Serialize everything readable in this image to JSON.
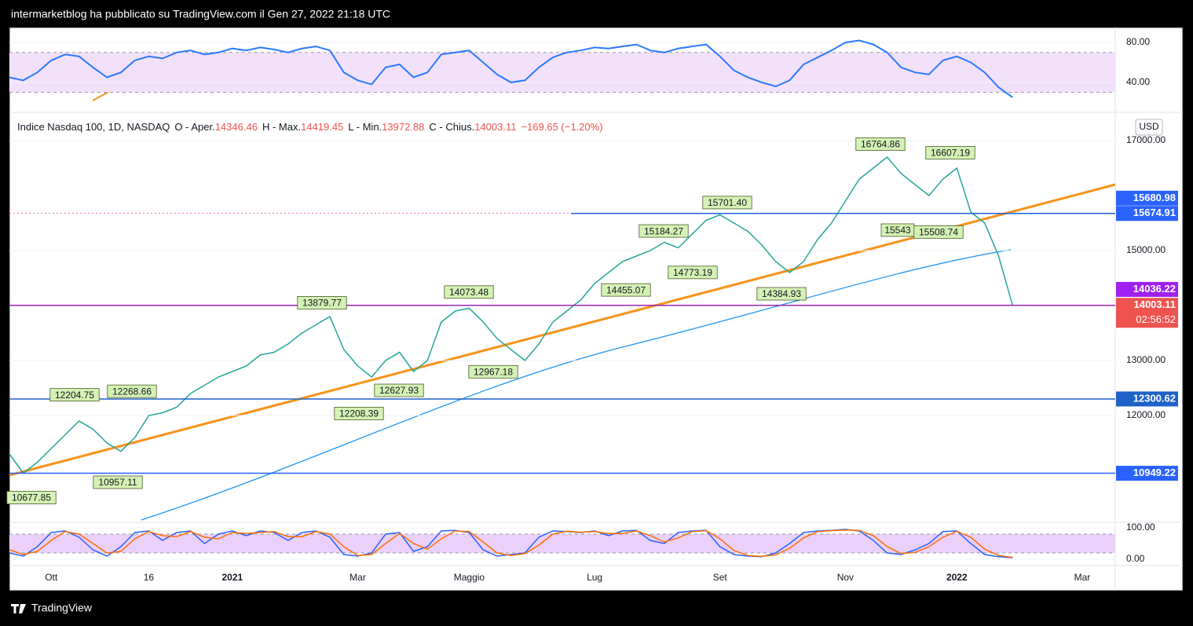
{
  "header": {
    "title": "intermarketblog ha pubblicato su TradingView.com il Gen 27, 2022 21:18 UTC"
  },
  "footer": {
    "brand": "TradingView"
  },
  "chart_data": [
    {
      "type": "line",
      "name": "rsi",
      "series": [
        {
          "color": "#2979ff",
          "values": [
            45,
            42,
            50,
            62,
            68,
            66,
            55,
            45,
            50,
            62,
            66,
            64,
            70,
            72,
            68,
            70,
            74,
            72,
            75,
            73,
            70,
            74,
            76,
            72,
            50,
            42,
            38,
            55,
            58,
            45,
            50,
            68,
            70,
            72,
            60,
            48,
            40,
            42,
            55,
            65,
            70,
            72,
            75,
            74,
            76,
            78,
            72,
            70,
            74,
            76,
            78,
            66,
            52,
            45,
            40,
            36,
            42,
            58,
            65,
            72,
            80,
            82,
            78,
            70,
            55,
            50,
            48,
            62,
            66,
            60,
            50,
            35,
            25,
            null,
            null,
            null,
            null,
            null,
            null
          ]
        }
      ],
      "ylim": [
        10,
        95
      ],
      "yticks": [
        {
          "value": 80,
          "label": "80.00"
        },
        {
          "value": 40,
          "label": "40.00"
        }
      ],
      "band": [
        30,
        70
      ],
      "band_color": "#f3e0fb"
    },
    {
      "type": "line",
      "name": "price",
      "title": "Indice Nasdaq 100, 1D, NASDAQ",
      "ohlc": [
        {
          "label": "O - Aper.",
          "value": 14346.46
        },
        {
          "label": "H - Max.",
          "value": 14419.45
        },
        {
          "label": "L - Min.",
          "value": 13972.88
        },
        {
          "label": "C - Chius.",
          "value": 14003.11
        }
      ],
      "change_label": "−169.65 (−1.20%)",
      "currency": "USD",
      "categories": [
        null,
        null,
        null,
        "Ott",
        null,
        null,
        null,
        null,
        null,
        null,
        "16",
        null,
        null,
        null,
        null,
        null,
        "2021",
        null,
        null,
        null,
        null,
        null,
        null,
        null,
        null,
        "Mar",
        null,
        null,
        null,
        null,
        null,
        null,
        null,
        "Maggio",
        null,
        null,
        null,
        null,
        null,
        null,
        null,
        null,
        "Lug",
        null,
        null,
        null,
        null,
        null,
        null,
        null,
        null,
        "Set",
        null,
        null,
        null,
        null,
        null,
        null,
        null,
        null,
        "Nov",
        null,
        null,
        null,
        null,
        null,
        null,
        null,
        "2022",
        null,
        null,
        null,
        null,
        null,
        null,
        null,
        null,
        "Mar",
        null
      ],
      "series": [
        {
          "color": "#26a69a",
          "values": [
            11300,
            10950,
            11150,
            11400,
            11650,
            11900,
            11750,
            11500,
            11350,
            11600,
            12000,
            12050,
            12150,
            12400,
            12550,
            12700,
            12800,
            12900,
            13100,
            13150,
            13300,
            13500,
            13650,
            13800,
            13200,
            12900,
            12700,
            13000,
            13150,
            12800,
            13000,
            13700,
            13900,
            13950,
            13700,
            13400,
            13200,
            13000,
            13300,
            13700,
            13900,
            14100,
            14400,
            14600,
            14800,
            14900,
            15000,
            15150,
            15050,
            15300,
            15550,
            15650,
            15500,
            15350,
            15100,
            14800,
            14600,
            14800,
            15200,
            15500,
            15900,
            16300,
            16500,
            16700,
            16400,
            16200,
            16000,
            16300,
            16500,
            15700,
            15500,
            14900,
            14003.11,
            null,
            null,
            null,
            null,
            null,
            null
          ]
        }
      ],
      "ylim": [
        10057,
        17514
      ],
      "yticks": [
        {
          "value": 17000,
          "label": "17000.00"
        },
        {
          "value": 15000,
          "label": "15000.00"
        },
        {
          "value": 13000,
          "label": "13000.00"
        },
        {
          "value": 12000,
          "label": "12000.00"
        }
      ],
      "annotations": [
        10677.85,
        12204.75,
        12268.66,
        10957.11,
        13879.77,
        12208.39,
        12627.93,
        14073.48,
        12967.18,
        15184.27,
        14455.07,
        14773.19,
        {
          "value": 15701.4,
          "label": "15701.40"
        },
        14384.93,
        16764.86,
        15543,
        15508.74,
        16607.19
      ],
      "levels": [
        {
          "value": 15680.98,
          "color": "#2962ff",
          "line_color": "#e573c7"
        },
        {
          "value": 15674.91,
          "color": "#2962ff",
          "line_color": "#1e63e0"
        },
        {
          "value": 14036.22,
          "color": "#a020f0",
          "line_color": null
        },
        {
          "value": 14003.11,
          "color": "#ef5350",
          "line_color": "#9c27b0",
          "countdown": "02:56:52"
        },
        {
          "value": 12300.62,
          "color": "#1e62c8",
          "line_color": "#1e62c8"
        },
        {
          "value": 10949.22,
          "color": "#2962ff",
          "line_color": "#2962ff"
        }
      ]
    },
    {
      "type": "line",
      "name": "stochastic",
      "series": [
        {
          "color": "#2962ff",
          "values": [
            20,
            10,
            40,
            85,
            90,
            70,
            30,
            10,
            40,
            85,
            90,
            60,
            85,
            90,
            50,
            80,
            90,
            75,
            90,
            85,
            60,
            85,
            90,
            70,
            15,
            10,
            20,
            80,
            85,
            25,
            40,
            90,
            92,
            85,
            30,
            10,
            15,
            20,
            70,
            90,
            88,
            85,
            90,
            75,
            90,
            92,
            60,
            50,
            85,
            90,
            92,
            40,
            15,
            10,
            8,
            20,
            50,
            85,
            90,
            92,
            95,
            90,
            60,
            20,
            15,
            30,
            50,
            88,
            90,
            50,
            15,
            8,
            5,
            null,
            null,
            null,
            null,
            null,
            null
          ]
        },
        {
          "color": "#ff6d00",
          "values": [
            30,
            15,
            25,
            60,
            88,
            80,
            50,
            20,
            25,
            65,
            88,
            75,
            72,
            88,
            70,
            65,
            85,
            82,
            85,
            88,
            72,
            72,
            88,
            80,
            40,
            12,
            15,
            50,
            82,
            50,
            32,
            65,
            90,
            88,
            55,
            20,
            12,
            18,
            45,
            80,
            89,
            86,
            88,
            82,
            82,
            90,
            75,
            55,
            68,
            88,
            91,
            65,
            28,
            12,
            9,
            14,
            35,
            68,
            88,
            91,
            93,
            92,
            75,
            40,
            18,
            22,
            40,
            70,
            89,
            70,
            32,
            12,
            6,
            null,
            null,
            null,
            null,
            null,
            null
          ]
        }
      ],
      "ylim": [
        -20,
        117.5
      ],
      "yticks": [
        {
          "value": 100,
          "label": "100.00"
        },
        {
          "value": 0,
          "label": "0.00"
        }
      ],
      "band": [
        20,
        80
      ],
      "band_color": "#ead0fb"
    }
  ]
}
